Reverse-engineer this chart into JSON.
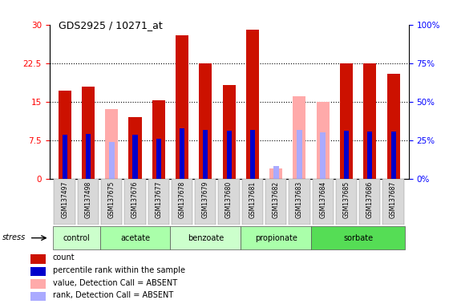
{
  "title": "GDS2925 / 10271_at",
  "samples": [
    "GSM137497",
    "GSM137498",
    "GSM137675",
    "GSM137676",
    "GSM137677",
    "GSM137678",
    "GSM137679",
    "GSM137680",
    "GSM137681",
    "GSM137682",
    "GSM137683",
    "GSM137684",
    "GSM137685",
    "GSM137686",
    "GSM137687"
  ],
  "count": [
    17.2,
    18.0,
    0,
    12.0,
    15.3,
    28.0,
    22.5,
    18.2,
    29.0,
    0,
    0,
    0,
    22.5,
    22.5,
    20.5
  ],
  "percentile_rank_scaled": [
    8.5,
    8.7,
    0,
    8.5,
    7.8,
    9.8,
    9.5,
    9.3,
    9.5,
    0,
    0,
    0,
    9.3,
    9.2,
    9.2
  ],
  "absent_value": [
    0,
    0,
    13.5,
    0,
    0,
    0,
    0,
    0,
    0,
    2.0,
    16.0,
    15.0,
    0,
    0,
    0
  ],
  "absent_rank_scaled": [
    0,
    0,
    7.2,
    0,
    0,
    0,
    0,
    0,
    0,
    2.5,
    9.5,
    9.0,
    0,
    0,
    0
  ],
  "groups": [
    {
      "name": "control",
      "start": 0,
      "end": 1,
      "color": "#ccffcc"
    },
    {
      "name": "acetate",
      "start": 2,
      "end": 4,
      "color": "#aaffaa"
    },
    {
      "name": "benzoate",
      "start": 5,
      "end": 7,
      "color": "#ccffcc"
    },
    {
      "name": "propionate",
      "start": 8,
      "end": 10,
      "color": "#aaffaa"
    },
    {
      "name": "sorbate",
      "start": 11,
      "end": 14,
      "color": "#66ee66"
    }
  ],
  "ylim_left": [
    0,
    30
  ],
  "ylim_right": [
    0,
    100
  ],
  "yticks_left": [
    0,
    7.5,
    15,
    22.5,
    30
  ],
  "ytick_labels_left": [
    "0",
    "7.5",
    "15",
    "22.5",
    "30"
  ],
  "yticks_right": [
    0,
    25,
    50,
    75,
    100
  ],
  "ytick_labels_right": [
    "0%",
    "25%",
    "50%",
    "75%",
    "100%"
  ],
  "color_count": "#cc1100",
  "color_rank": "#0000cc",
  "color_absent_value": "#ffaaaa",
  "color_absent_rank": "#aaaaff",
  "bar_width": 0.55,
  "stress_label": "stress",
  "legend_items": [
    {
      "color": "#cc1100",
      "label": "count"
    },
    {
      "color": "#0000cc",
      "label": "percentile rank within the sample"
    },
    {
      "color": "#ffaaaa",
      "label": "value, Detection Call = ABSENT"
    },
    {
      "color": "#aaaaff",
      "label": "rank, Detection Call = ABSENT"
    }
  ]
}
